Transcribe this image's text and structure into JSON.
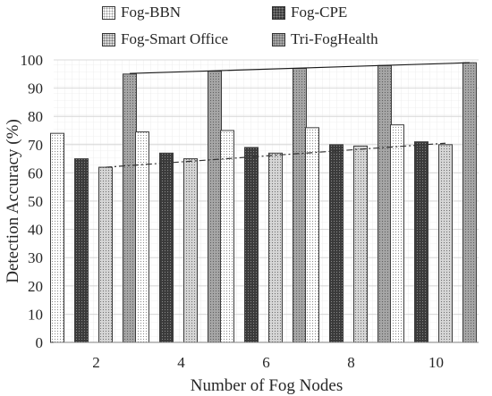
{
  "chart_data": {
    "type": "bar",
    "title": "",
    "xlabel": "Number of Fog Nodes",
    "ylabel": "Detection Accuracy (%)",
    "categories": [
      "2",
      "4",
      "6",
      "8",
      "10"
    ],
    "ylim": [
      0,
      100
    ],
    "yticks": [
      "0",
      "10",
      "20",
      "30",
      "40",
      "50",
      "60",
      "70",
      "80",
      "90",
      "100"
    ],
    "grid": true,
    "legend_position": "top",
    "series": [
      {
        "name": "Fog-BBN",
        "values": [
          74,
          74.5,
          75,
          76,
          77
        ],
        "color": "#ffffff",
        "pattern": "dots-light"
      },
      {
        "name": "Fog-CPE",
        "values": [
          65,
          67,
          69,
          70,
          71
        ],
        "color": "#404040",
        "pattern": "dots-dark"
      },
      {
        "name": "Fog-Smart Office",
        "values": [
          62,
          65,
          67,
          69.5,
          70
        ],
        "color": "#cfcfcf",
        "pattern": "dots-medium"
      },
      {
        "name": "Tri-FogHealth",
        "values": [
          95,
          96,
          97,
          98,
          99
        ],
        "color": "#a9a9a9",
        "pattern": "dots-grey"
      }
    ],
    "trendlines": [
      {
        "series": "Tri-FogHealth",
        "style": "solid",
        "from": [
          95.2,
          99
        ]
      },
      {
        "series": "Fog-Smart Office",
        "style": "dash-dot",
        "from": [
          62,
          70.5
        ]
      }
    ]
  }
}
